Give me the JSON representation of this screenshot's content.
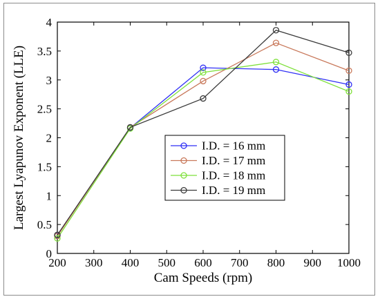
{
  "chart_data": {
    "type": "line",
    "xlabel": "Cam Speeds (rpm)",
    "ylabel": "Largest Lyapunov Exponent (LLE)",
    "xlim": [
      200,
      1000
    ],
    "ylim": [
      0,
      4
    ],
    "xticks": [
      200,
      300,
      400,
      500,
      600,
      700,
      800,
      900,
      1000
    ],
    "yticks": [
      0,
      0.5,
      1,
      1.5,
      2,
      2.5,
      3,
      3.5,
      4
    ],
    "ytick_labels": [
      "0",
      "0.5",
      "1",
      "1.5",
      "2",
      "2.5",
      "3",
      "3.5",
      "4"
    ],
    "grid": false,
    "legend_position": "center",
    "x": [
      200,
      400,
      600,
      800,
      1000
    ],
    "series": [
      {
        "name": "I.D. = 16 mm",
        "color": "#2f2ff5",
        "values": [
          0.31,
          2.17,
          3.21,
          3.18,
          2.92
        ]
      },
      {
        "name": "I.D. = 17 mm",
        "color": "#c8785a",
        "values": [
          0.3,
          2.18,
          2.98,
          3.64,
          3.16
        ]
      },
      {
        "name": "I.D. = 18 mm",
        "color": "#7ee03a",
        "values": [
          0.26,
          2.16,
          3.13,
          3.31,
          2.8
        ]
      },
      {
        "name": "I.D. = 19 mm",
        "color": "#3a3a3a",
        "values": [
          0.32,
          2.18,
          2.68,
          3.86,
          3.47
        ]
      }
    ]
  }
}
